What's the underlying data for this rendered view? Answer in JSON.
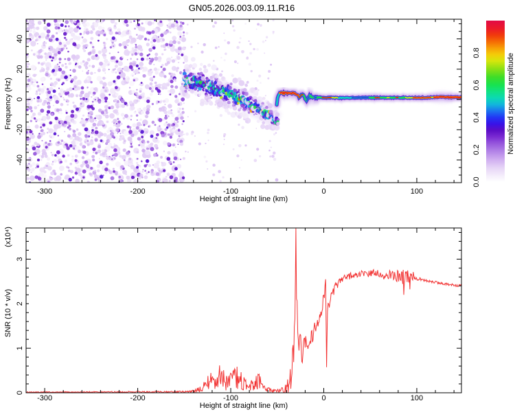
{
  "title": "GN05.2026.003.09.11.R16",
  "chart_data": [
    {
      "type": "heatmap",
      "title": "GN05.2026.003.09.11.R16",
      "xlabel": "Height of straight line (km)",
      "ylabel": "Frequency (Hz)",
      "xlim": [
        -320,
        148
      ],
      "ylim": [
        -55,
        53
      ],
      "xticks": [
        -300,
        -200,
        -100,
        0,
        100
      ],
      "yticks": [
        -40,
        -20,
        0,
        20,
        40
      ],
      "x_minor_step": 20,
      "y_minor_step": 5,
      "colorbar": {
        "label": "Normalized spectral amplitude",
        "ticks": [
          0.0,
          0.2,
          0.4,
          0.6,
          0.8
        ],
        "range": [
          0,
          1
        ],
        "stops": [
          [
            0.0,
            "#ffffff"
          ],
          [
            0.04,
            "#f4edfb"
          ],
          [
            0.09,
            "#e5d3f6"
          ],
          [
            0.14,
            "#cfadf0"
          ],
          [
            0.19,
            "#b383e7"
          ],
          [
            0.24,
            "#9555dc"
          ],
          [
            0.28,
            "#7a2ad2"
          ],
          [
            0.32,
            "#5c0ec6"
          ],
          [
            0.36,
            "#3812e8"
          ],
          [
            0.4,
            "#2236f5"
          ],
          [
            0.44,
            "#1b74ef"
          ],
          [
            0.48,
            "#12b6dc"
          ],
          [
            0.52,
            "#0cd9b4"
          ],
          [
            0.56,
            "#10e184"
          ],
          [
            0.6,
            "#17e251"
          ],
          [
            0.65,
            "#3fdd28"
          ],
          [
            0.7,
            "#8ae014"
          ],
          [
            0.75,
            "#d6e60c"
          ],
          [
            0.79,
            "#f4cc08"
          ],
          [
            0.83,
            "#f79e06"
          ],
          [
            0.87,
            "#f56a05"
          ],
          [
            0.91,
            "#f13a0c"
          ],
          [
            0.95,
            "#ec1a28"
          ],
          [
            1.0,
            "#e20a46"
          ]
        ]
      },
      "regions": {
        "noise_field": {
          "x_range": [
            -320,
            -150
          ],
          "y_range": [
            -55,
            53
          ],
          "amplitude_range": [
            0.0,
            0.3
          ],
          "description": "speckled low-amplitude purple noise filling the left third"
        },
        "chirp_band": {
          "center_points": [
            [
              -150,
              13
            ],
            [
              -135,
              11
            ],
            [
              -120,
              8
            ],
            [
              -105,
              5
            ],
            [
              -95,
              2
            ],
            [
              -85,
              -1
            ],
            [
              -75,
              -5
            ],
            [
              -65,
              -8
            ],
            [
              -58,
              -11
            ],
            [
              -52,
              -14
            ],
            [
              -49,
              -15
            ]
          ],
          "spread_points": [
            [
              -150,
              8
            ],
            [
              -120,
              7.5
            ],
            [
              -95,
              7
            ],
            [
              -75,
              6
            ],
            [
              -60,
              5
            ],
            [
              -49,
              3
            ]
          ],
          "amplitude_range": [
            0.1,
            0.8
          ],
          "description": "descending noisy signal band from -150 km to -50 km"
        },
        "carrier_line": {
          "points": [
            [
              -50.5,
              -3
            ],
            [
              -49.5,
              2.5
            ],
            [
              -47,
              4.2
            ],
            [
              -44,
              4.4
            ],
            [
              -40,
              4.2
            ],
            [
              -36,
              4.3
            ],
            [
              -32,
              4
            ],
            [
              -28,
              3.2
            ],
            [
              -26,
              1.2
            ],
            [
              -24,
              2.8
            ],
            [
              -22,
              3.2
            ],
            [
              -20,
              0.4
            ],
            [
              -18,
              -0.6
            ],
            [
              -16,
              1.8
            ],
            [
              -14,
              2.2
            ],
            [
              -12,
              0.8
            ],
            [
              -10,
              1.6
            ],
            [
              -7,
              0.9
            ],
            [
              -4,
              1.4
            ],
            [
              0,
              1
            ],
            [
              6,
              1.3
            ],
            [
              15,
              1
            ],
            [
              30,
              1.1
            ],
            [
              50,
              1.2
            ],
            [
              70,
              1.1
            ],
            [
              90,
              1.2
            ],
            [
              105,
              1.1
            ],
            [
              115,
              1.3
            ],
            [
              125,
              1.6
            ],
            [
              135,
              1.5
            ],
            [
              148,
              1.4
            ]
          ],
          "amplitude_range": [
            0.5,
            1.0
          ],
          "description": "narrow high-amplitude carrier line near 0 Hz from -50 km to right edge"
        }
      }
    },
    {
      "type": "line",
      "xlabel": "Height of straight line (km)",
      "ylabel": "SNR (10 * v/v)",
      "ylabel_scale": "(x10⁴)",
      "xlim": [
        -320,
        148
      ],
      "ylim": [
        0,
        3.7
      ],
      "xticks": [
        -300,
        -200,
        -100,
        0,
        100
      ],
      "yticks": [
        0,
        1,
        2,
        3
      ],
      "x_minor_step": 20,
      "y_minor_step": 0.2,
      "line_color": "#f23333",
      "series": [
        {
          "name": "SNR",
          "points": [
            [
              -320,
              0.015,
              0.01
            ],
            [
              -250,
              0.018,
              0.012
            ],
            [
              -200,
              0.02,
              0.015
            ],
            [
              -160,
              0.02,
              0.015
            ],
            [
              -142,
              0.03,
              0.02
            ],
            [
              -133,
              0.08,
              0.06
            ],
            [
              -127,
              0.18,
              0.12
            ],
            [
              -122,
              0.28,
              0.2
            ],
            [
              -117,
              0.2,
              0.16
            ],
            [
              -112,
              0.38,
              0.26
            ],
            [
              -107,
              0.28,
              0.22
            ],
            [
              -102,
              0.2,
              0.18
            ],
            [
              -97,
              0.3,
              0.24
            ],
            [
              -92,
              0.35,
              0.26
            ],
            [
              -87,
              0.22,
              0.18
            ],
            [
              -82,
              0.12,
              0.1
            ],
            [
              -77,
              0.22,
              0.18
            ],
            [
              -72,
              0.3,
              0.24
            ],
            [
              -67,
              0.18,
              0.16
            ],
            [
              -62,
              0.08,
              0.07
            ],
            [
              -56,
              0.05,
              0.04
            ],
            [
              -50,
              0.07,
              0.06
            ],
            [
              -45,
              0.1,
              0.12
            ],
            [
              -40,
              0.12,
              0.18
            ],
            [
              -36,
              0.3,
              0.35
            ],
            [
              -33,
              0.8,
              0.5
            ],
            [
              -31,
              1.6,
              0.3
            ],
            [
              -30,
              3.68,
              0.02
            ],
            [
              -29.3,
              2.2,
              0.3
            ],
            [
              -28,
              1.3,
              0.4
            ],
            [
              -26,
              1.05,
              0.3
            ],
            [
              -23,
              0.95,
              0.28
            ],
            [
              -20,
              1.05,
              0.25
            ],
            [
              -17,
              1.15,
              0.22
            ],
            [
              -14,
              1.25,
              0.2
            ],
            [
              -11,
              1.35,
              0.2
            ],
            [
              -8,
              1.5,
              0.18
            ],
            [
              -5,
              1.65,
              0.15
            ],
            [
              -2,
              1.8,
              0.12
            ],
            [
              0,
              2.1,
              0.25
            ],
            [
              2,
              2.55,
              0.05
            ],
            [
              3,
              0.6,
              0.05
            ],
            [
              4,
              1.9,
              0.1
            ],
            [
              6,
              2.05,
              0.15
            ],
            [
              9,
              2.2,
              0.12
            ],
            [
              12,
              2.35,
              0.1
            ],
            [
              16,
              2.45,
              0.1
            ],
            [
              20,
              2.55,
              0.08
            ],
            [
              26,
              2.6,
              0.08
            ],
            [
              33,
              2.65,
              0.07
            ],
            [
              40,
              2.68,
              0.07
            ],
            [
              48,
              2.66,
              0.08
            ],
            [
              56,
              2.7,
              0.08
            ],
            [
              64,
              2.64,
              0.1
            ],
            [
              72,
              2.66,
              0.1
            ],
            [
              78,
              2.6,
              0.12
            ],
            [
              83,
              2.65,
              0.18
            ],
            [
              86,
              2.45,
              0.3
            ],
            [
              89,
              2.75,
              0.28
            ],
            [
              92,
              2.4,
              0.22
            ],
            [
              95,
              2.65,
              0.12
            ],
            [
              98,
              2.58,
              0.05
            ],
            [
              105,
              2.54,
              0.03
            ],
            [
              115,
              2.5,
              0.03
            ],
            [
              125,
              2.46,
              0.03
            ],
            [
              135,
              2.43,
              0.03
            ],
            [
              148,
              2.4,
              0.03
            ]
          ]
        }
      ]
    }
  ]
}
